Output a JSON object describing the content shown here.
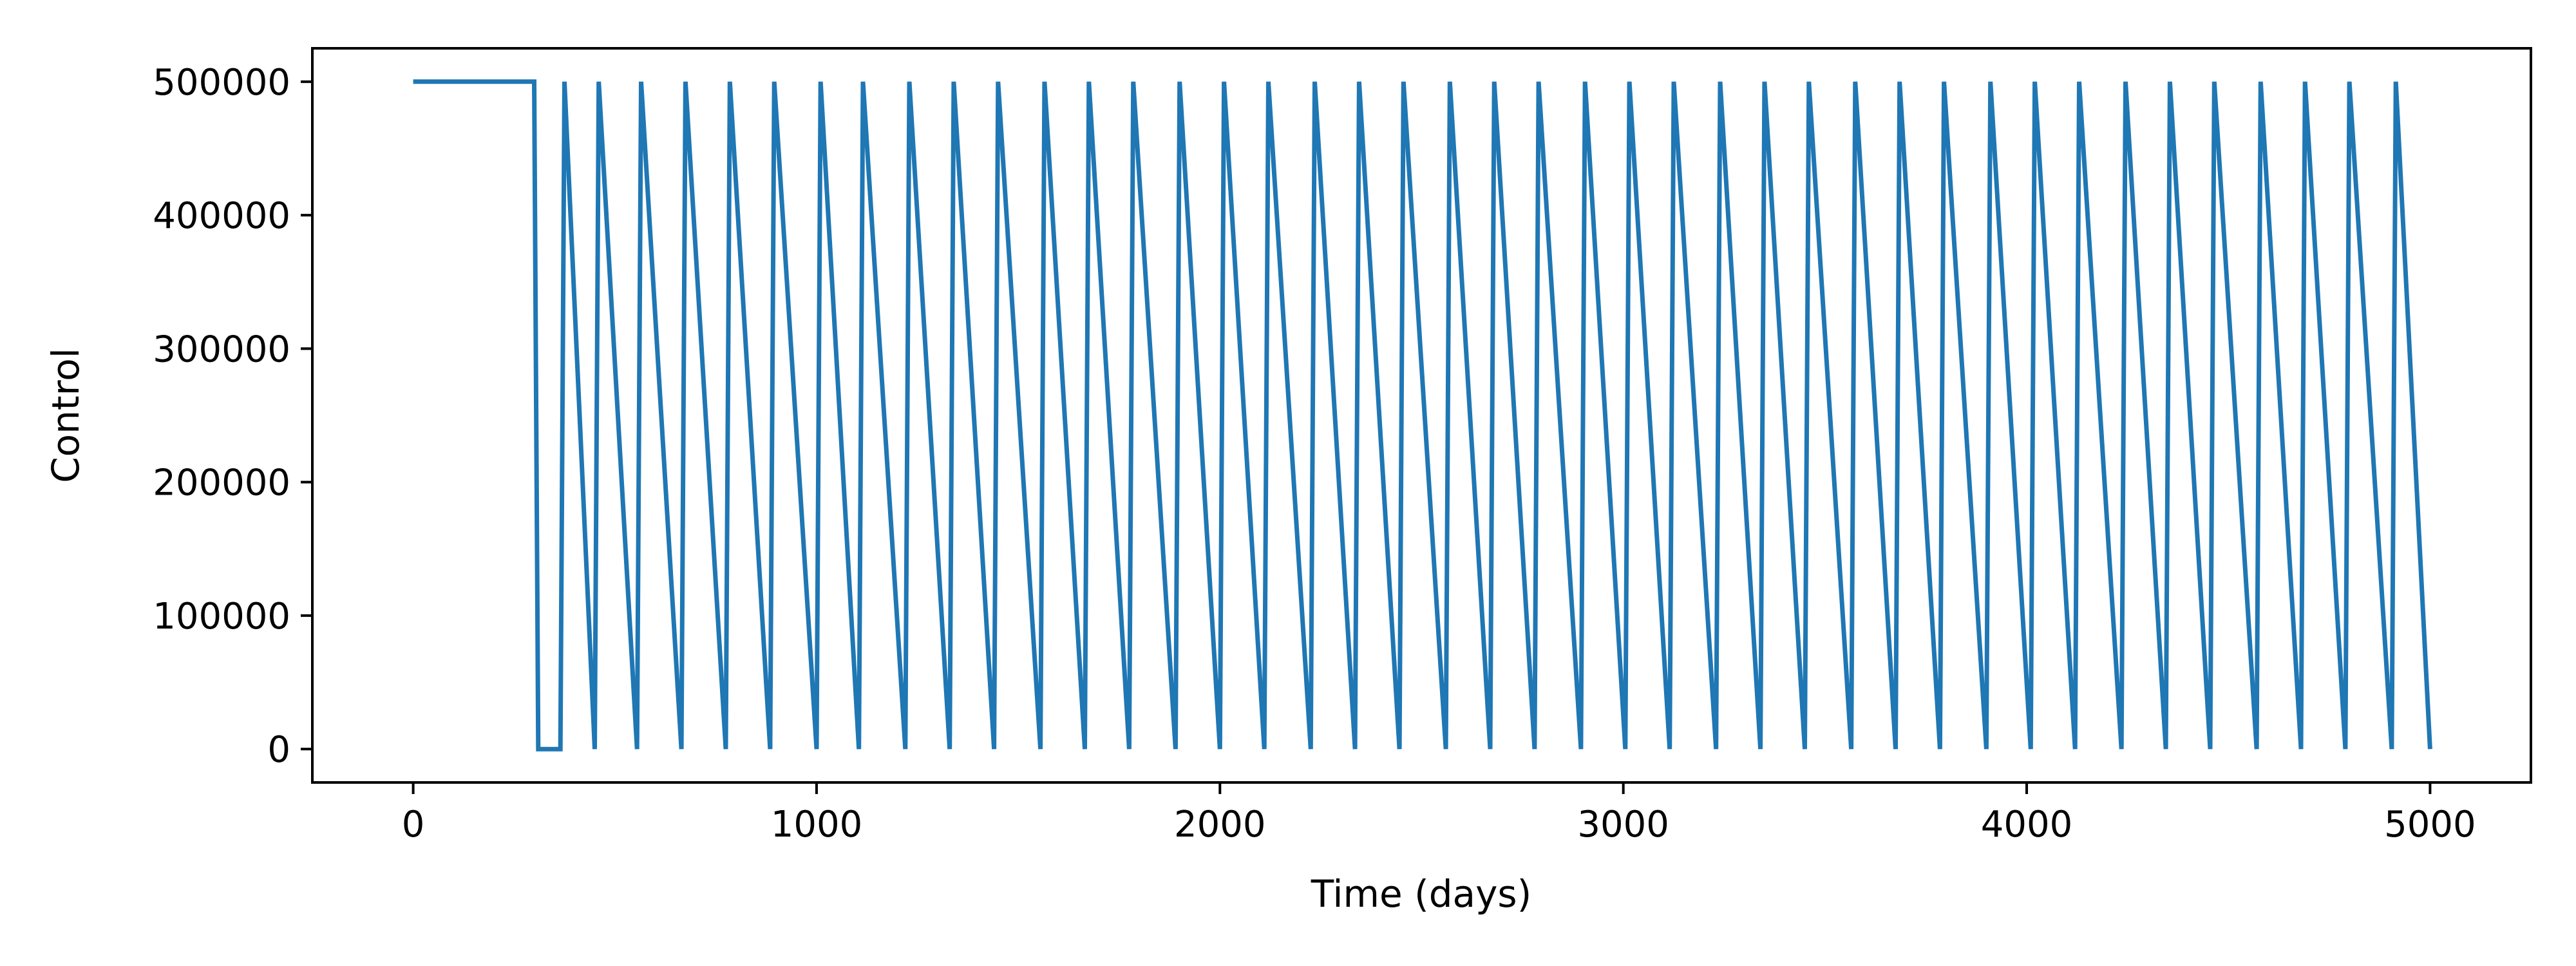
{
  "chart_data": {
    "type": "line",
    "title": "",
    "xlabel": "Time (days)",
    "ylabel": "Control",
    "xlim": [
      -250,
      5250
    ],
    "ylim": [
      -25000,
      525000
    ],
    "xticks": [
      0,
      1000,
      2000,
      3000,
      4000,
      5000
    ],
    "xtick_labels": [
      "0",
      "1000",
      "2000",
      "3000",
      "4000",
      "5000"
    ],
    "yticks": [
      0,
      100000,
      200000,
      300000,
      400000,
      500000
    ],
    "ytick_labels": [
      "0",
      "100000",
      "200000",
      "300000",
      "400000",
      "500000"
    ],
    "grid": false,
    "line_color": "#1f77b4",
    "series": [
      {
        "x": [
          0,
          300,
          310,
          365,
          375,
          450,
          460,
          555,
          565,
          665,
          675,
          775,
          785,
          885,
          895,
          1000,
          1010,
          1105,
          1115,
          1220,
          1230,
          1330,
          1340,
          1440,
          1450,
          1555,
          1565,
          1665,
          1675,
          1775,
          1785,
          1890,
          1900,
          2000,
          2010,
          2110,
          2120,
          2225,
          2235,
          2335,
          2345,
          2445,
          2455,
          2560,
          2570,
          2670,
          2680,
          2780,
          2790,
          2895,
          2905,
          3005,
          3015,
          3115,
          3125,
          3230,
          3240,
          3340,
          3350,
          3450,
          3460,
          3565,
          3575,
          3675,
          3685,
          3785,
          3795,
          3900,
          3910,
          4010,
          4020,
          4120,
          4130,
          4235,
          4245,
          4345,
          4355,
          4455,
          4465,
          4570,
          4580,
          4680,
          4690,
          4790,
          4800,
          4905,
          4915,
          5000
        ],
        "y": [
          500000,
          500000,
          0,
          0,
          500000,
          0,
          500000,
          0,
          500000,
          0,
          500000,
          0,
          500000,
          0,
          500000,
          0,
          500000,
          0,
          500000,
          0,
          500000,
          0,
          500000,
          0,
          500000,
          0,
          500000,
          0,
          500000,
          0,
          500000,
          0,
          500000,
          0,
          500000,
          0,
          500000,
          0,
          500000,
          0,
          500000,
          0,
          500000,
          0,
          500000,
          0,
          500000,
          0,
          500000,
          0,
          500000,
          0,
          500000,
          0,
          500000,
          0,
          500000,
          0,
          500000,
          0,
          500000,
          0,
          500000,
          0,
          500000,
          0,
          500000,
          0,
          500000,
          0,
          500000,
          0,
          500000,
          0,
          500000,
          0,
          500000,
          0,
          500000,
          0,
          500000,
          0,
          500000,
          0,
          500000,
          0,
          500000,
          0
        ]
      }
    ]
  }
}
